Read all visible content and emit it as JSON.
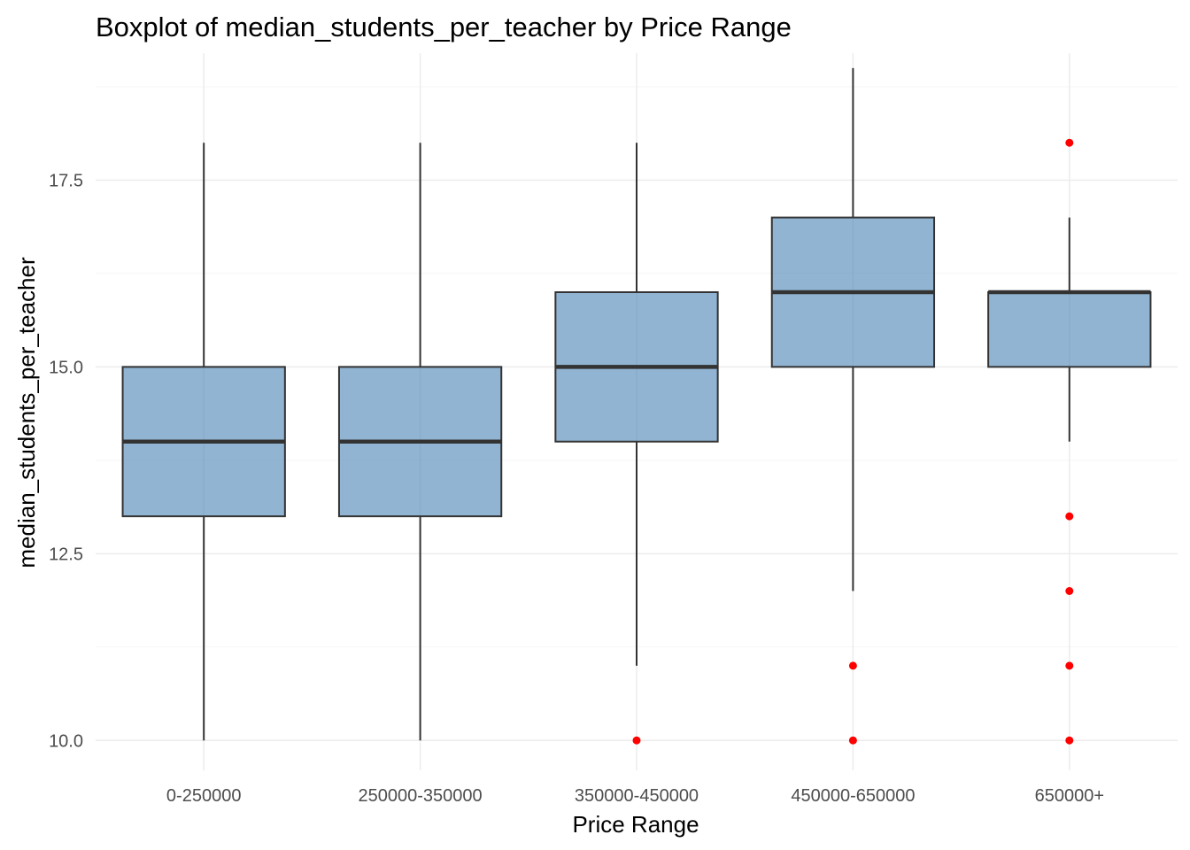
{
  "chart_data": {
    "type": "boxplot",
    "title": "Boxplot of median_students_per_teacher by Price Range",
    "xlabel": "Price Range",
    "ylabel": "median_students_per_teacher",
    "ylim": [
      9.6,
      19.2
    ],
    "yticks": [
      10.0,
      12.5,
      15.0,
      17.5
    ],
    "ytick_labels": [
      "10.0",
      "12.5",
      "15.0",
      "17.5"
    ],
    "grid": true,
    "box_fill": "#4682b4",
    "outlier_color": "#ff0000",
    "categories": [
      "0-250000",
      "250000-350000",
      "350000-450000",
      "450000-650000",
      "650000+"
    ],
    "boxes": [
      {
        "category": "0-250000",
        "whisker_low": 10,
        "q1": 13,
        "median": 14,
        "q3": 15,
        "whisker_high": 18,
        "outliers": []
      },
      {
        "category": "250000-350000",
        "whisker_low": 10,
        "q1": 13,
        "median": 14,
        "q3": 15,
        "whisker_high": 18,
        "outliers": []
      },
      {
        "category": "350000-450000",
        "whisker_low": 11,
        "q1": 14,
        "median": 15,
        "q3": 16,
        "whisker_high": 18,
        "outliers": [
          10
        ]
      },
      {
        "category": "450000-650000",
        "whisker_low": 12,
        "q1": 15,
        "median": 16,
        "q3": 17,
        "whisker_high": 19,
        "outliers": [
          11,
          10
        ]
      },
      {
        "category": "650000+",
        "whisker_low": 14,
        "q1": 15,
        "median": 16,
        "q3": 16,
        "whisker_high": 17,
        "outliers": [
          18,
          13,
          12,
          11,
          10
        ]
      }
    ]
  }
}
